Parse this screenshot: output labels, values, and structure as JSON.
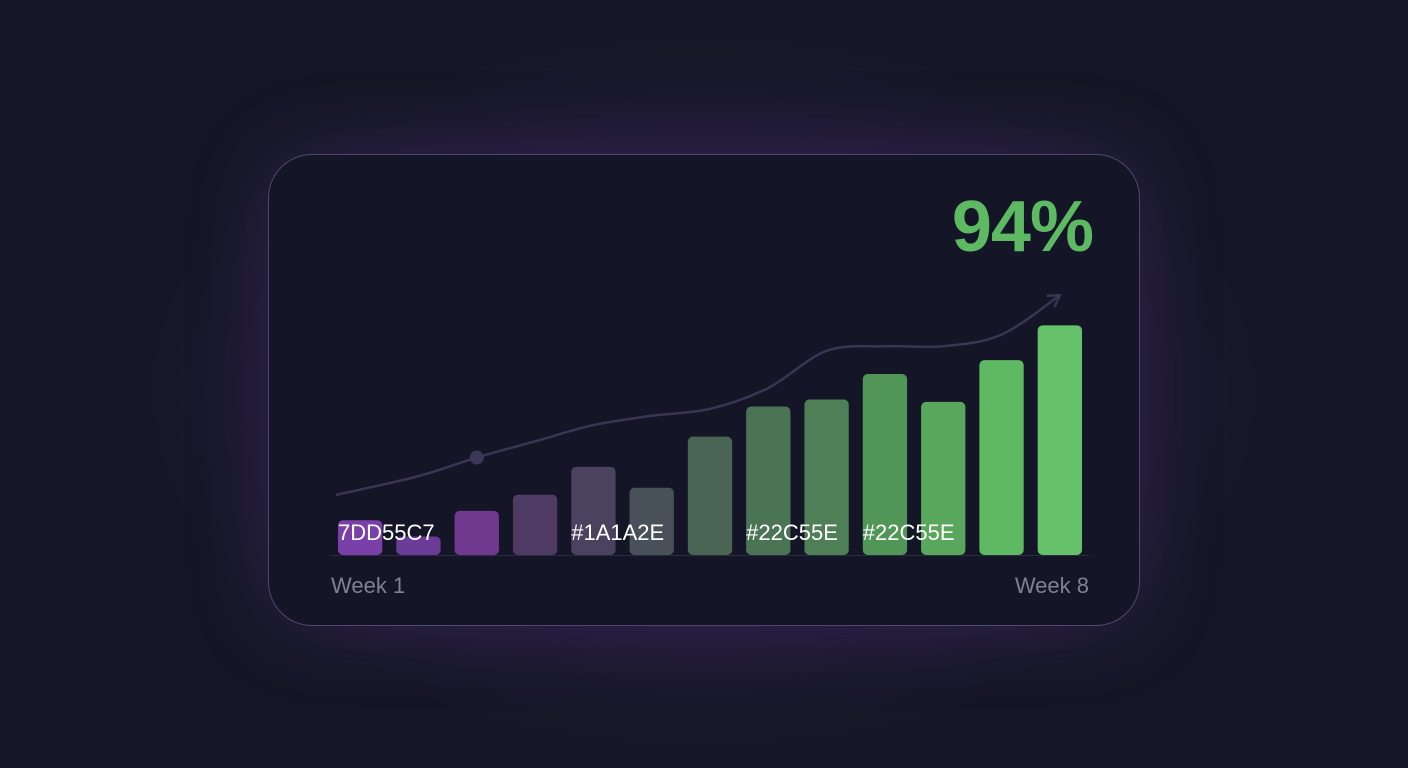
{
  "headline": {
    "value": "94%",
    "color": "#5DBA63"
  },
  "x_labels": {
    "start": "Week 1",
    "end": "Week 8"
  },
  "chart_data": {
    "type": "bar",
    "y_range": [
      0,
      100
    ],
    "grid": false,
    "legend": "none",
    "series": [
      {
        "values": [
          15,
          8,
          19,
          26,
          38,
          29,
          51,
          64,
          67,
          78,
          66,
          84,
          99
        ]
      }
    ],
    "bar_colors": [
      "#7A3FA8",
      "#6B3B98",
      "#70388F",
      "#4E3A63",
      "#4B4260",
      "#48515A",
      "#4A6454",
      "#4B7455",
      "#4F7F56",
      "#529657",
      "#58A75C",
      "#5FB862",
      "#66C26A"
    ],
    "trend_line": {
      "values": [
        26,
        34,
        42,
        49,
        56,
        60,
        63,
        72,
        88,
        90,
        90,
        95,
        112
      ],
      "color": "#3A3552",
      "marker_index": 2,
      "arrow": true
    },
    "annotations": [
      {
        "text": "7DD55C7",
        "bar_index": 0
      },
      {
        "text": "#1A1A2E",
        "bar_index": 4
      },
      {
        "text": "#22C55E",
        "bar_index": 7
      },
      {
        "text": "#22C55E",
        "bar_index": 9
      }
    ]
  }
}
